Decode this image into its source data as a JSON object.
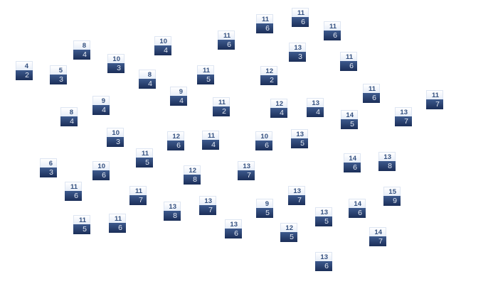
{
  "colors": {
    "tile_top": "#eef3fb",
    "tile_top_text": "#34507f",
    "tile_bottom": "#2a4374",
    "tile_bottom_text": "#e4e9f3"
  },
  "tiles": [
    {
      "top": 4,
      "bottom": 2
    },
    {
      "top": 5,
      "bottom": 3
    },
    {
      "top": 8,
      "bottom": 4
    },
    {
      "top": 10,
      "bottom": 3
    },
    {
      "top": 8,
      "bottom": 4
    },
    {
      "top": 10,
      "bottom": 4
    },
    {
      "top": 11,
      "bottom": 6
    },
    {
      "top": 11,
      "bottom": 5
    },
    {
      "top": 9,
      "bottom": 4
    },
    {
      "top": 9,
      "bottom": 4
    },
    {
      "top": 8,
      "bottom": 4
    },
    {
      "top": 11,
      "bottom": 2
    },
    {
      "top": 10,
      "bottom": 3
    },
    {
      "top": 12,
      "bottom": 6
    },
    {
      "top": 11,
      "bottom": 4
    },
    {
      "top": 11,
      "bottom": 6
    },
    {
      "top": 11,
      "bottom": 6
    },
    {
      "top": 11,
      "bottom": 6
    },
    {
      "top": 13,
      "bottom": 3
    },
    {
      "top": 11,
      "bottom": 6
    },
    {
      "top": 12,
      "bottom": 2
    },
    {
      "top": 12,
      "bottom": 4
    },
    {
      "top": 13,
      "bottom": 4
    },
    {
      "top": 11,
      "bottom": 6
    },
    {
      "top": 11,
      "bottom": 7
    },
    {
      "top": 14,
      "bottom": 5
    },
    {
      "top": 13,
      "bottom": 7
    },
    {
      "top": 10,
      "bottom": 6
    },
    {
      "top": 13,
      "bottom": 5
    },
    {
      "top": 6,
      "bottom": 3
    },
    {
      "top": 10,
      "bottom": 6
    },
    {
      "top": 11,
      "bottom": 5
    },
    {
      "top": 12,
      "bottom": 8
    },
    {
      "top": 13,
      "bottom": 7
    },
    {
      "top": 11,
      "bottom": 6
    },
    {
      "top": 11,
      "bottom": 7
    },
    {
      "top": 13,
      "bottom": 8
    },
    {
      "top": 13,
      "bottom": 7
    },
    {
      "top": 11,
      "bottom": 5
    },
    {
      "top": 11,
      "bottom": 6
    },
    {
      "top": 13,
      "bottom": 6
    },
    {
      "top": 14,
      "bottom": 6
    },
    {
      "top": 13,
      "bottom": 8
    },
    {
      "top": 13,
      "bottom": 7
    },
    {
      "top": 9,
      "bottom": 5
    },
    {
      "top": 13,
      "bottom": 5
    },
    {
      "top": 14,
      "bottom": 6
    },
    {
      "top": 15,
      "bottom": 9
    },
    {
      "top": 12,
      "bottom": 5
    },
    {
      "top": 14,
      "bottom": 7
    },
    {
      "top": 13,
      "bottom": 6
    }
  ]
}
